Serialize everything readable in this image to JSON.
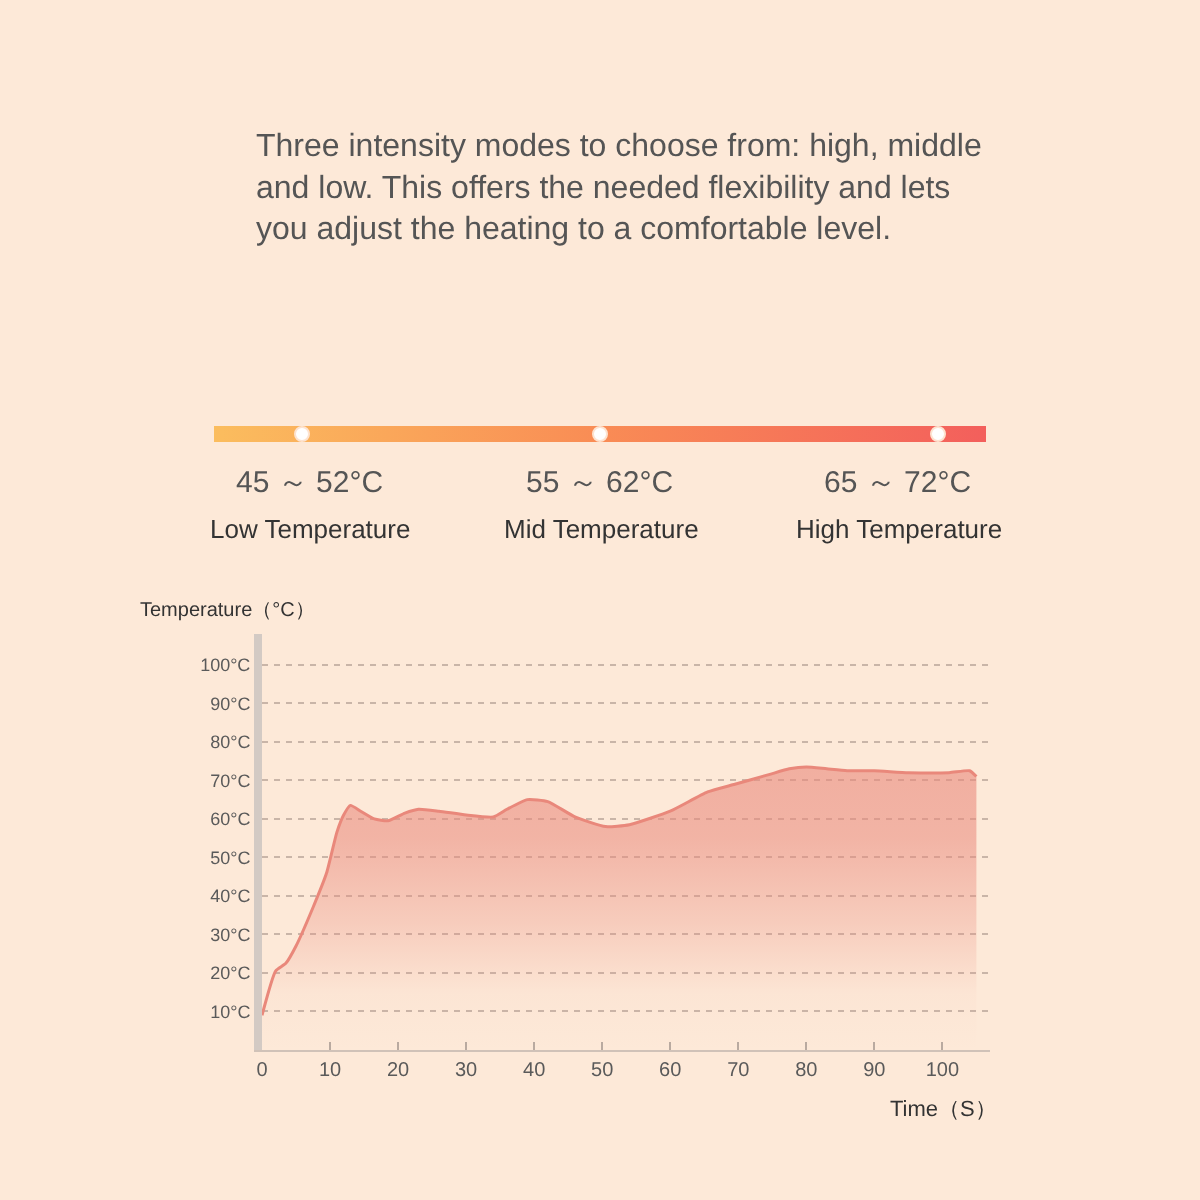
{
  "chart_data": {
    "type": "area",
    "title": "Three intensity modes to choose from: high, middle and low. This offers the needed flexibility and lets you adjust the heating to a comfortable level.",
    "annotations": [
      "45 ～ 52°C",
      "Low Temperature",
      "55 ～ 62°C",
      "Mid Temperature",
      "65 ～ 72°C",
      "High Temperature"
    ],
    "xlabel": "Time（S）",
    "ylabel": "Temperature（°C）",
    "x": [
      0,
      2,
      3.5,
      5,
      7.5,
      9.5,
      11,
      12,
      13,
      14.5,
      16.5,
      18.5,
      21,
      23,
      26,
      30,
      34,
      36,
      39,
      42,
      46,
      50.5,
      54,
      60,
      65.5,
      69.5,
      74.5,
      77.5,
      80,
      83,
      86,
      90,
      95,
      101,
      104,
      105
    ],
    "series": [
      {
        "color": "#e9887b",
        "values": [
          9,
          20.5,
          22.5,
          27,
          37,
          46,
          56.5,
          61,
          63.5,
          62,
          60,
          59.5,
          61.5,
          62.5,
          62,
          61,
          60.5,
          62.5,
          65,
          64.5,
          60.5,
          58,
          58.5,
          62,
          67,
          69,
          71.5,
          73,
          73.5,
          73,
          72.5,
          72.5,
          72,
          72,
          72.5,
          71
        ]
      }
    ],
    "xlim": [
      0,
      107
    ],
    "ylim": [
      0,
      108
    ],
    "xticks": [
      0,
      10,
      20,
      30,
      40,
      50,
      60,
      70,
      80,
      90,
      100
    ],
    "yticks": [
      {
        "value": 10,
        "label": "10°C"
      },
      {
        "value": 20,
        "label": "20°C"
      },
      {
        "value": 30,
        "label": "30°C"
      },
      {
        "value": 40,
        "label": "40°C"
      },
      {
        "value": 50,
        "label": "50°C"
      },
      {
        "value": 60,
        "label": "60°C"
      },
      {
        "value": 70,
        "label": "70°C"
      },
      {
        "value": 80,
        "label": "80°C"
      },
      {
        "value": 90,
        "label": "90°C"
      },
      {
        "value": 100,
        "label": "100°C"
      }
    ],
    "grid": "y"
  }
}
